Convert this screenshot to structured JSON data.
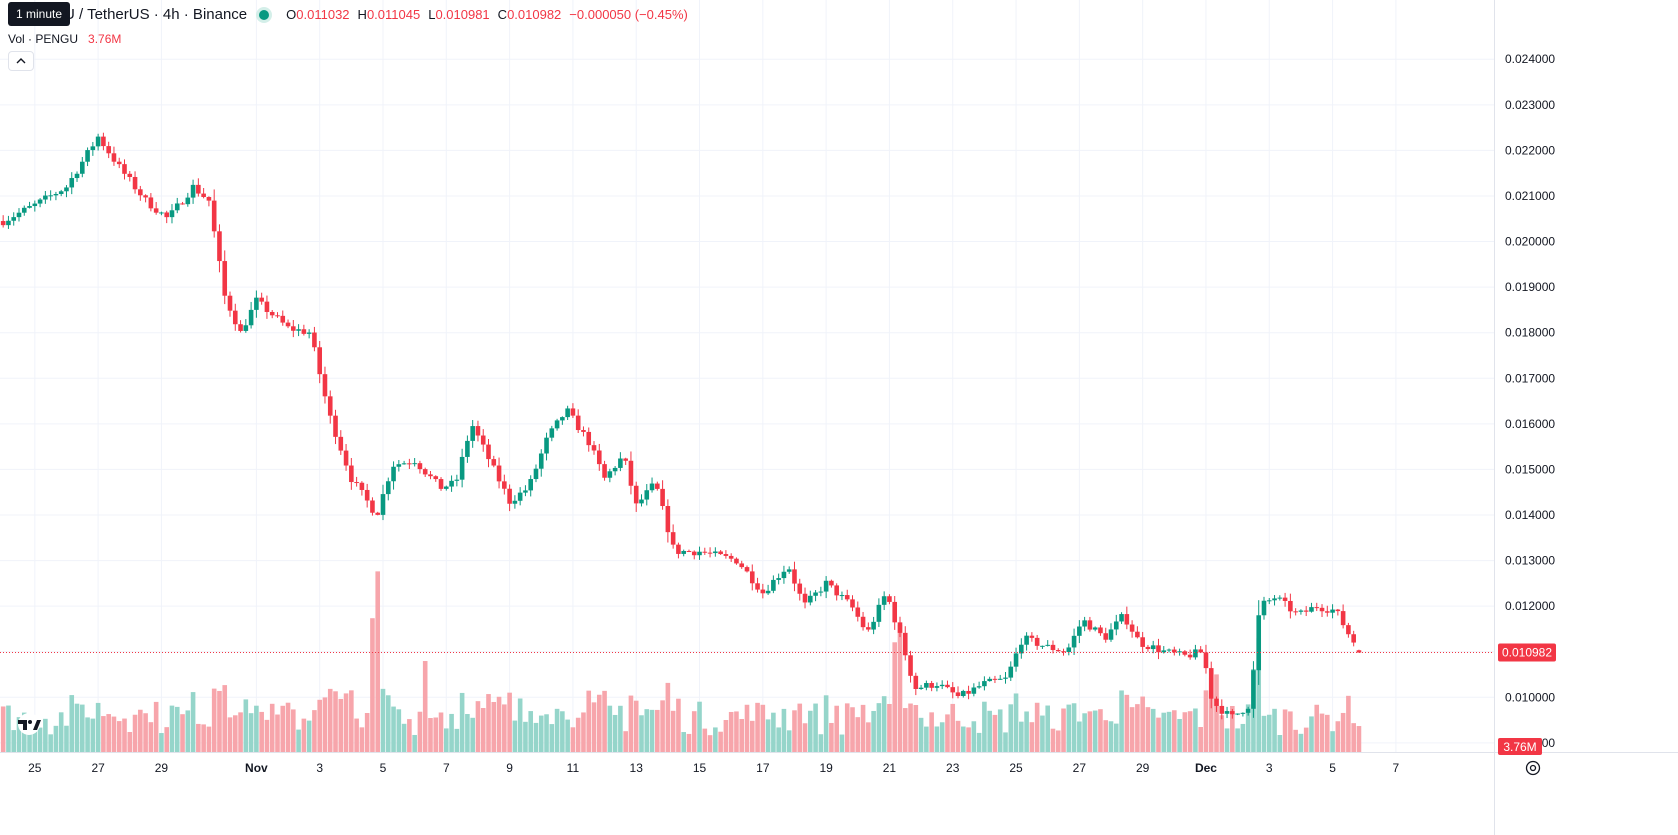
{
  "tooltip": "1 minute",
  "header": {
    "symbol": "U / TetherUS · 4h · Binance",
    "open_key": "O",
    "open": "0.011032",
    "high_key": "H",
    "high": "0.011045",
    "low_key": "L",
    "low": "0.010981",
    "close_key": "C",
    "close": "0.010982",
    "change": "−0.000050 (−0.45%)"
  },
  "volume_legend": {
    "title": "Vol · PENGU",
    "value": "3.76M"
  },
  "icons": {
    "collapse": "chevron-up-icon",
    "logo": "tradingview-logo-icon",
    "settings": "gear-icon"
  },
  "colors": {
    "up": "#089981",
    "down": "#f23645",
    "volume_up": "#95d5ca",
    "volume_down": "#f7a5ab"
  },
  "chart_data": {
    "type": "candlestick",
    "timeframe": "4h",
    "y_axis": {
      "ticks": [
        "0.009000",
        "0.010000",
        "0.011000",
        "0.012000",
        "0.013000",
        "0.014000",
        "0.015000",
        "0.016000",
        "0.017000",
        "0.018000",
        "0.019000",
        "0.020000",
        "0.021000",
        "0.022000",
        "0.023000",
        "0.024000"
      ],
      "ylim": [
        0.0088,
        0.0253
      ]
    },
    "x_axis": {
      "labels": [
        {
          "label": "25",
          "day": -6
        },
        {
          "label": "27",
          "day": -4
        },
        {
          "label": "29",
          "day": -2
        },
        {
          "label": "Nov",
          "day": 1
        },
        {
          "label": "3",
          "day": 3
        },
        {
          "label": "5",
          "day": 5
        },
        {
          "label": "7",
          "day": 7
        },
        {
          "label": "9",
          "day": 9
        },
        {
          "label": "11",
          "day": 11
        },
        {
          "label": "13",
          "day": 13
        },
        {
          "label": "15",
          "day": 15
        },
        {
          "label": "17",
          "day": 17
        },
        {
          "label": "19",
          "day": 19
        },
        {
          "label": "21",
          "day": 21
        },
        {
          "label": "23",
          "day": 23
        },
        {
          "label": "25",
          "day": 25
        },
        {
          "label": "27",
          "day": 27
        },
        {
          "label": "29",
          "day": 29
        },
        {
          "label": "Dec",
          "day": 31
        },
        {
          "label": "3",
          "day": 33
        },
        {
          "label": "5",
          "day": 35
        },
        {
          "label": "7",
          "day": 37
        }
      ],
      "range_days": [
        -7.1,
        40.1
      ]
    },
    "price_path": [
      {
        "day": -7.0,
        "price": 0.02045
      },
      {
        "day": -6.0,
        "price": 0.0208
      },
      {
        "day": -5.0,
        "price": 0.0212
      },
      {
        "day": -4.0,
        "price": 0.0223
      },
      {
        "day": -3.3,
        "price": 0.0216
      },
      {
        "day": -2.5,
        "price": 0.0209
      },
      {
        "day": -1.8,
        "price": 0.0205
      },
      {
        "day": -1.0,
        "price": 0.0212
      },
      {
        "day": -0.5,
        "price": 0.0209
      },
      {
        "day": 0.0,
        "price": 0.0188
      },
      {
        "day": 0.5,
        "price": 0.018
      },
      {
        "day": 1.0,
        "price": 0.0187
      },
      {
        "day": 2.0,
        "price": 0.0181
      },
      {
        "day": 2.7,
        "price": 0.018
      },
      {
        "day": 3.3,
        "price": 0.0162
      },
      {
        "day": 4.0,
        "price": 0.0148
      },
      {
        "day": 4.8,
        "price": 0.014
      },
      {
        "day": 5.3,
        "price": 0.0151
      },
      {
        "day": 6.0,
        "price": 0.0152
      },
      {
        "day": 6.8,
        "price": 0.0146
      },
      {
        "day": 7.3,
        "price": 0.0147
      },
      {
        "day": 7.8,
        "price": 0.016
      },
      {
        "day": 8.5,
        "price": 0.015
      },
      {
        "day": 9.0,
        "price": 0.0143
      },
      {
        "day": 9.6,
        "price": 0.0146
      },
      {
        "day": 10.2,
        "price": 0.0157
      },
      {
        "day": 10.8,
        "price": 0.0163
      },
      {
        "day": 11.5,
        "price": 0.0156
      },
      {
        "day": 12.0,
        "price": 0.0148
      },
      {
        "day": 12.6,
        "price": 0.0153
      },
      {
        "day": 13.0,
        "price": 0.0142
      },
      {
        "day": 13.6,
        "price": 0.0147
      },
      {
        "day": 14.2,
        "price": 0.0132
      },
      {
        "day": 15.0,
        "price": 0.0132
      },
      {
        "day": 16.2,
        "price": 0.013
      },
      {
        "day": 17.0,
        "price": 0.0123
      },
      {
        "day": 17.8,
        "price": 0.0129
      },
      {
        "day": 18.3,
        "price": 0.012
      },
      {
        "day": 19.0,
        "price": 0.0125
      },
      {
        "day": 19.8,
        "price": 0.012
      },
      {
        "day": 20.3,
        "price": 0.0114
      },
      {
        "day": 20.9,
        "price": 0.0123
      },
      {
        "day": 21.4,
        "price": 0.0112
      },
      {
        "day": 21.8,
        "price": 0.0102
      },
      {
        "day": 22.5,
        "price": 0.0103
      },
      {
        "day": 23.2,
        "price": 0.01
      },
      {
        "day": 24.0,
        "price": 0.0103
      },
      {
        "day": 24.7,
        "price": 0.0104
      },
      {
        "day": 25.2,
        "price": 0.0113
      },
      {
        "day": 26.0,
        "price": 0.0111
      },
      {
        "day": 26.6,
        "price": 0.011
      },
      {
        "day": 27.1,
        "price": 0.0117
      },
      {
        "day": 27.8,
        "price": 0.0113
      },
      {
        "day": 28.4,
        "price": 0.0118
      },
      {
        "day": 28.9,
        "price": 0.0112
      },
      {
        "day": 29.7,
        "price": 0.011
      },
      {
        "day": 30.3,
        "price": 0.0109
      },
      {
        "day": 30.9,
        "price": 0.011
      },
      {
        "day": 31.2,
        "price": 0.0099
      },
      {
        "day": 31.8,
        "price": 0.00955
      },
      {
        "day": 32.4,
        "price": 0.00985
      },
      {
        "day": 32.7,
        "price": 0.012
      },
      {
        "day": 33.2,
        "price": 0.0122
      },
      {
        "day": 33.9,
        "price": 0.0118
      },
      {
        "day": 34.5,
        "price": 0.012
      },
      {
        "day": 35.1,
        "price": 0.0119
      },
      {
        "day": 35.5,
        "price": 0.0114
      },
      {
        "day": 35.9,
        "price": 0.01098
      }
    ],
    "volume_spikes": [
      {
        "day": 4.8,
        "volume": 13.5
      },
      {
        "day": 4.6,
        "volume": 10.0
      },
      {
        "day": 21.4,
        "volume": 9.5
      },
      {
        "day": 21.1,
        "volume": 8.2
      },
      {
        "day": 32.6,
        "volume": 8.5
      },
      {
        "day": 31.4,
        "volume": 5.8
      },
      {
        "day": 28.4,
        "volume": 4.6
      },
      {
        "day": 6.4,
        "volume": 6.8
      },
      {
        "day": 0.0,
        "volume": 5.0
      }
    ],
    "last_price": "0.010982",
    "last_volume": "3.76M"
  }
}
